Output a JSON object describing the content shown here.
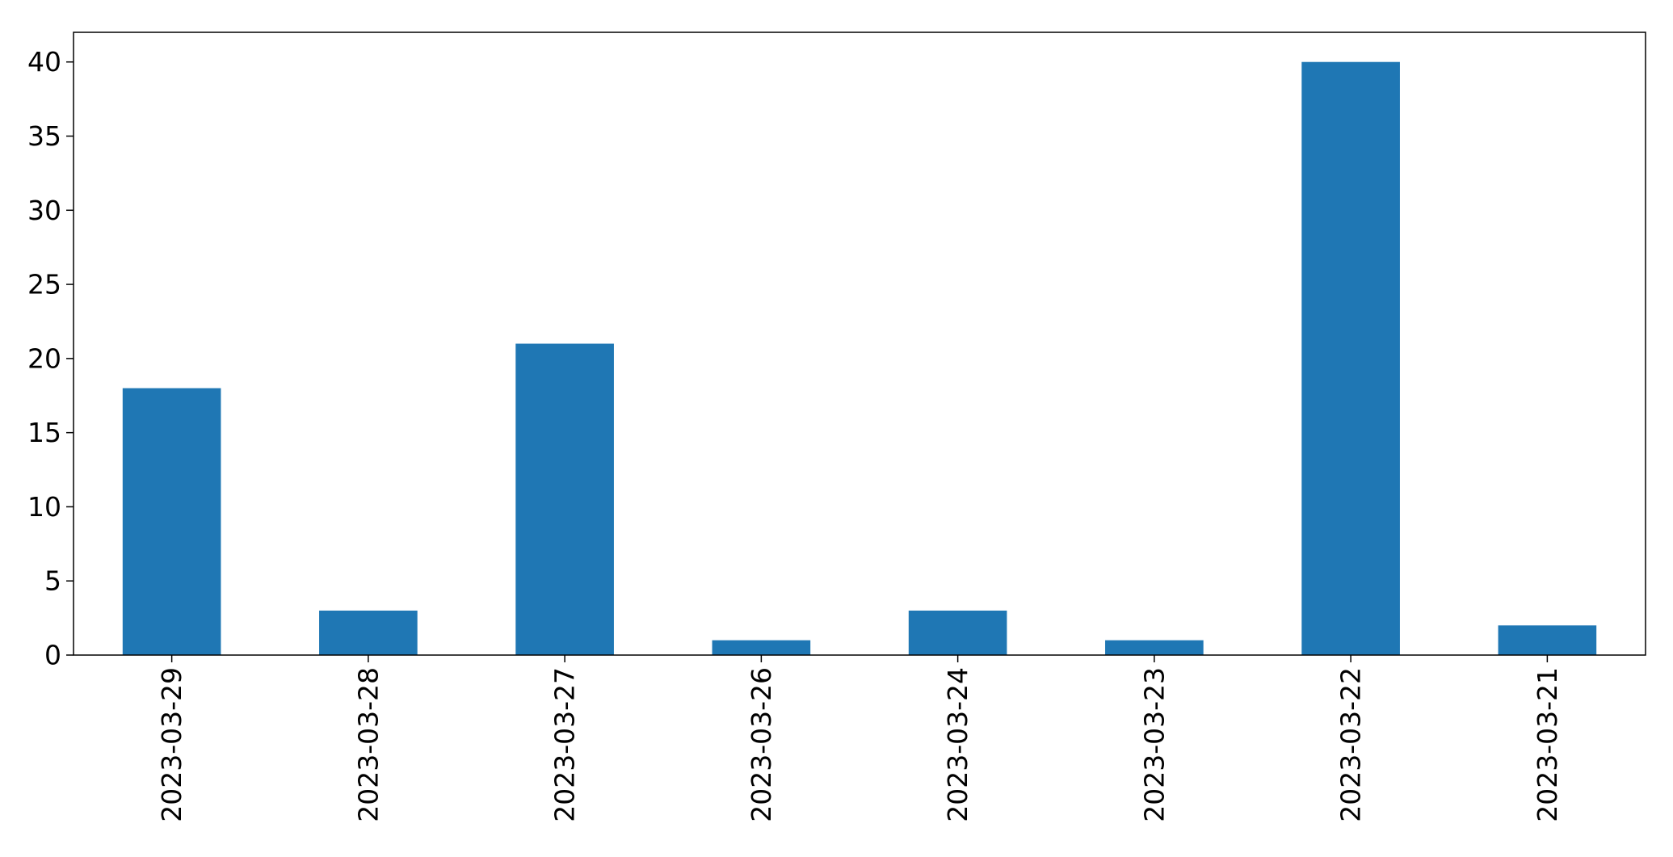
{
  "chart_data": {
    "type": "bar",
    "categories": [
      "2023-03-29",
      "2023-03-28",
      "2023-03-27",
      "2023-03-26",
      "2023-03-24",
      "2023-03-23",
      "2023-03-22",
      "2023-03-21"
    ],
    "values": [
      18,
      3,
      21,
      1,
      3,
      1,
      40,
      2
    ],
    "title": "",
    "xlabel": "",
    "ylabel": "",
    "ylim": [
      0,
      42
    ],
    "yticks": [
      0,
      5,
      10,
      15,
      20,
      25,
      30,
      35,
      40
    ],
    "grid": false,
    "bar_color": "#1f77b4"
  }
}
